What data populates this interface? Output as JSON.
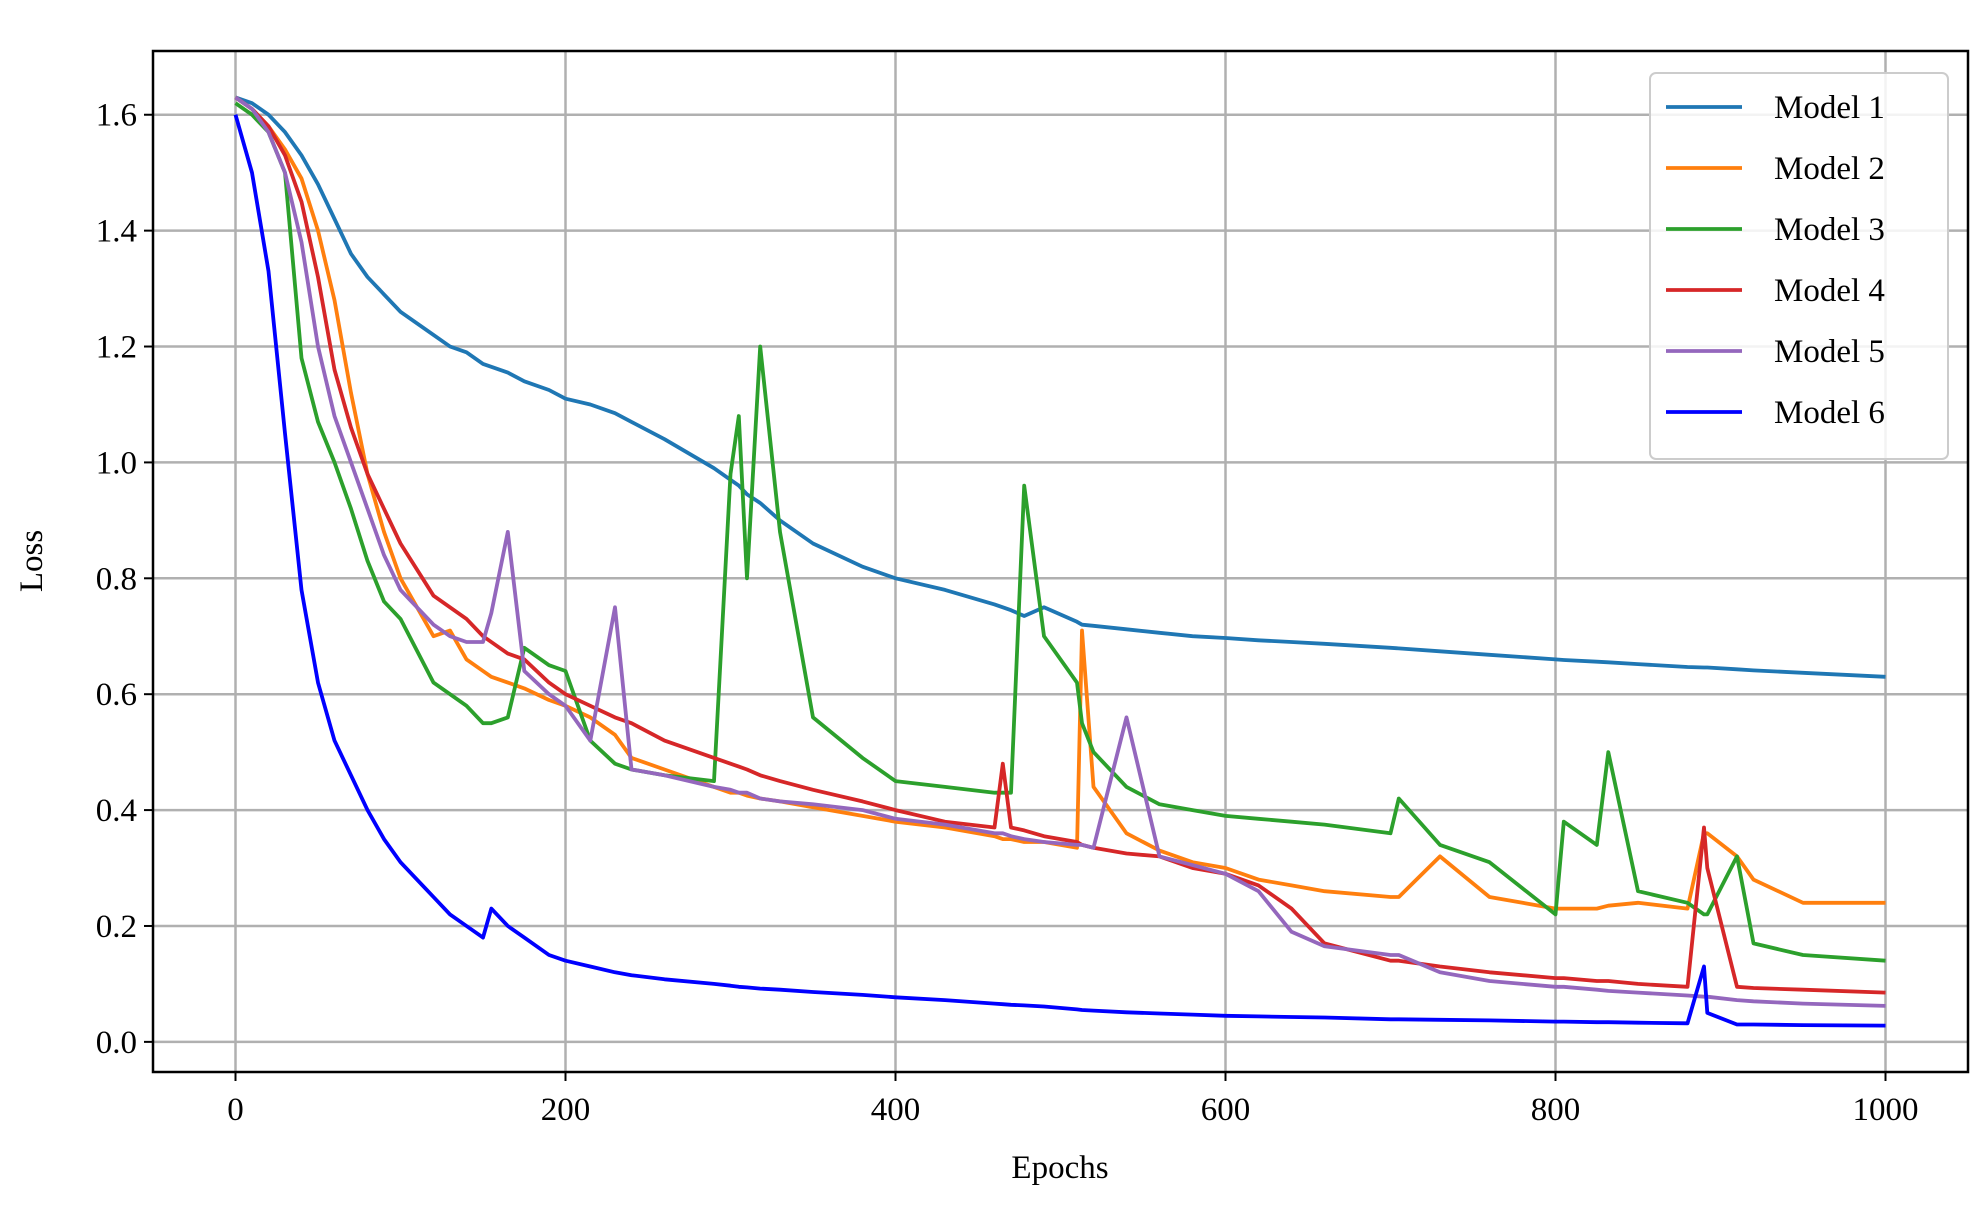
{
  "chart_data": {
    "type": "line",
    "xlabel": "Epochs",
    "ylabel": "Loss",
    "x": [
      0,
      10,
      20,
      30,
      40,
      50,
      60,
      70,
      80,
      90,
      100,
      120,
      130,
      140,
      150,
      155,
      165,
      175,
      190,
      200,
      215,
      230,
      240,
      260,
      290,
      300,
      305,
      310,
      318,
      330,
      350,
      380,
      400,
      430,
      460,
      465,
      470,
      478,
      490,
      510,
      513,
      520,
      540,
      560,
      580,
      600,
      620,
      640,
      660,
      700,
      705,
      730,
      760,
      800,
      805,
      825,
      832,
      850,
      880,
      890,
      892,
      910,
      920,
      950,
      1000
    ],
    "series": [
      {
        "name": "Model 1",
        "color": "#1f77b4",
        "values": [
          1.63,
          1.62,
          1.6,
          1.57,
          1.53,
          1.48,
          1.42,
          1.36,
          1.32,
          1.29,
          1.26,
          1.22,
          1.2,
          1.19,
          1.17,
          1.165,
          1.155,
          1.14,
          1.125,
          1.11,
          1.1,
          1.085,
          1.07,
          1.04,
          0.99,
          0.97,
          0.96,
          0.945,
          0.93,
          0.9,
          0.86,
          0.82,
          0.8,
          0.78,
          0.755,
          0.75,
          0.745,
          0.735,
          0.75,
          0.725,
          0.72,
          0.718,
          0.712,
          0.706,
          0.7,
          0.697,
          0.693,
          0.69,
          0.687,
          0.68,
          0.679,
          0.674,
          0.668,
          0.66,
          0.659,
          0.656,
          0.655,
          0.652,
          0.647,
          0.646,
          0.646,
          0.643,
          0.641,
          0.637,
          0.63
        ]
      },
      {
        "name": "Model 2",
        "color": "#ff7f0e",
        "values": [
          1.63,
          1.61,
          1.58,
          1.54,
          1.49,
          1.4,
          1.28,
          1.12,
          0.98,
          0.88,
          0.8,
          0.7,
          0.71,
          0.66,
          0.64,
          0.63,
          0.62,
          0.61,
          0.59,
          0.58,
          0.56,
          0.53,
          0.49,
          0.47,
          0.44,
          0.43,
          0.43,
          0.425,
          0.42,
          0.415,
          0.405,
          0.39,
          0.38,
          0.37,
          0.355,
          0.35,
          0.35,
          0.345,
          0.345,
          0.335,
          0.71,
          0.44,
          0.36,
          0.33,
          0.31,
          0.3,
          0.28,
          0.27,
          0.26,
          0.25,
          0.25,
          0.32,
          0.25,
          0.23,
          0.23,
          0.23,
          0.235,
          0.24,
          0.23,
          0.36,
          0.36,
          0.32,
          0.28,
          0.24,
          0.24
        ]
      },
      {
        "name": "Model 3",
        "color": "#2ca02c",
        "values": [
          1.62,
          1.6,
          1.57,
          1.5,
          1.18,
          1.07,
          1.0,
          0.92,
          0.83,
          0.76,
          0.73,
          0.62,
          0.6,
          0.58,
          0.55,
          0.55,
          0.56,
          0.68,
          0.65,
          0.64,
          0.52,
          0.48,
          0.47,
          0.46,
          0.45,
          0.98,
          1.08,
          0.8,
          1.2,
          0.88,
          0.56,
          0.49,
          0.45,
          0.44,
          0.43,
          0.43,
          0.43,
          0.96,
          0.7,
          0.62,
          0.55,
          0.5,
          0.44,
          0.41,
          0.4,
          0.39,
          0.385,
          0.38,
          0.375,
          0.36,
          0.42,
          0.34,
          0.31,
          0.22,
          0.38,
          0.34,
          0.5,
          0.26,
          0.24,
          0.22,
          0.22,
          0.32,
          0.17,
          0.15,
          0.14
        ]
      },
      {
        "name": "Model 4",
        "color": "#d62728",
        "values": [
          1.63,
          1.61,
          1.58,
          1.53,
          1.45,
          1.32,
          1.16,
          1.06,
          0.98,
          0.92,
          0.86,
          0.77,
          0.75,
          0.73,
          0.7,
          0.69,
          0.67,
          0.66,
          0.62,
          0.6,
          0.58,
          0.56,
          0.55,
          0.52,
          0.49,
          0.48,
          0.475,
          0.47,
          0.46,
          0.45,
          0.435,
          0.415,
          0.4,
          0.38,
          0.37,
          0.48,
          0.37,
          0.365,
          0.355,
          0.345,
          0.34,
          0.335,
          0.325,
          0.32,
          0.3,
          0.29,
          0.27,
          0.23,
          0.17,
          0.14,
          0.14,
          0.13,
          0.12,
          0.11,
          0.11,
          0.105,
          0.105,
          0.1,
          0.095,
          0.37,
          0.3,
          0.095,
          0.093,
          0.09,
          0.085
        ]
      },
      {
        "name": "Model 5",
        "color": "#9467bd",
        "values": [
          1.63,
          1.61,
          1.57,
          1.5,
          1.38,
          1.2,
          1.08,
          1.0,
          0.92,
          0.84,
          0.78,
          0.72,
          0.7,
          0.69,
          0.69,
          0.74,
          0.88,
          0.64,
          0.6,
          0.58,
          0.52,
          0.75,
          0.47,
          0.46,
          0.44,
          0.435,
          0.43,
          0.43,
          0.42,
          0.415,
          0.41,
          0.4,
          0.385,
          0.375,
          0.36,
          0.36,
          0.355,
          0.35,
          0.345,
          0.34,
          0.34,
          0.335,
          0.56,
          0.32,
          0.305,
          0.29,
          0.26,
          0.19,
          0.165,
          0.15,
          0.15,
          0.12,
          0.105,
          0.095,
          0.095,
          0.09,
          0.088,
          0.085,
          0.08,
          0.078,
          0.078,
          0.072,
          0.07,
          0.066,
          0.062
        ]
      },
      {
        "name": "Model 6",
        "color": "#0000ff",
        "values": [
          1.6,
          1.5,
          1.33,
          1.05,
          0.78,
          0.62,
          0.52,
          0.46,
          0.4,
          0.35,
          0.31,
          0.25,
          0.22,
          0.2,
          0.18,
          0.23,
          0.2,
          0.18,
          0.15,
          0.14,
          0.13,
          0.12,
          0.115,
          0.108,
          0.1,
          0.097,
          0.095,
          0.094,
          0.092,
          0.09,
          0.086,
          0.081,
          0.077,
          0.072,
          0.066,
          0.065,
          0.064,
          0.063,
          0.061,
          0.056,
          0.055,
          0.054,
          0.051,
          0.049,
          0.047,
          0.045,
          0.044,
          0.043,
          0.042,
          0.039,
          0.039,
          0.038,
          0.037,
          0.035,
          0.035,
          0.034,
          0.034,
          0.033,
          0.032,
          0.13,
          0.05,
          0.03,
          0.03,
          0.029,
          0.028
        ]
      }
    ],
    "xlim": [
      -50,
      1050
    ],
    "ylim": [
      -0.052,
      1.71
    ],
    "xticks": [
      0,
      200,
      400,
      600,
      800,
      1000
    ],
    "yticks": [
      {
        "value": 0,
        "label": "0.0"
      },
      0.2,
      0.4,
      0.6,
      0.8,
      {
        "value": 1,
        "label": "1.0"
      },
      1.2,
      1.4,
      1.6
    ],
    "grid": true,
    "legend": "upper right"
  }
}
